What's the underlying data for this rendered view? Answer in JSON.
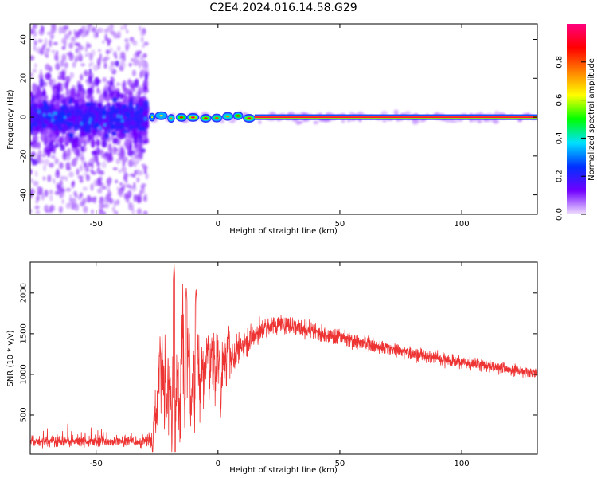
{
  "figure_title": "C2E4.2024.016.14.58.G29",
  "chart_data": [
    {
      "type": "heatmap",
      "title": "C2E4.2024.016.14.58.G29",
      "xlabel": "Height of straight line (km)",
      "ylabel": "Frequency (Hz)",
      "xlim": [
        -77,
        131
      ],
      "ylim": [
        -50,
        48
      ],
      "x_ticks": [
        -50,
        0,
        50,
        100
      ],
      "y_ticks": [
        -40,
        -20,
        0,
        20,
        40
      ],
      "grid": false,
      "regions": [
        {
          "x_range": [
            -77,
            -29
          ],
          "description": "scattered noise, dense band within -10..10 Hz, sparse up to +-48 Hz",
          "amplitude": [
            0.1,
            0.3
          ]
        },
        {
          "x_range": [
            -29,
            15
          ],
          "description": "intermittent signal near 0 Hz",
          "amplitude": [
            0.35,
            0.9
          ]
        },
        {
          "x_range": [
            15,
            131
          ],
          "description": "continuous signal at 0 Hz",
          "amplitude": 1.0
        }
      ],
      "colorbar": {
        "label": "Normalized spectral amplitude",
        "range": [
          0,
          1
        ],
        "ticks": [
          0.0,
          0.2,
          0.4,
          0.6,
          0.8
        ],
        "tick_labels": [
          "0.0",
          "0.2",
          "0.4",
          "0.6",
          "0.8"
        ],
        "colors": [
          "#f0e0ff",
          "#7000ff",
          "#0030ff",
          "#00e0ff",
          "#00ff00",
          "#ffff00",
          "#ff8000",
          "#ff0000",
          "#ff0080"
        ]
      }
    },
    {
      "type": "line",
      "xlabel": "Height of straight line (km)",
      "ylabel": "SNR (10 * v/v)",
      "xlim": [
        -77,
        131
      ],
      "ylim": [
        20,
        2380
      ],
      "x_ticks": [
        -50,
        0,
        50,
        100
      ],
      "y_ticks": [
        500,
        1000,
        1500,
        2000
      ],
      "grid": false,
      "line_color": "#ee3333",
      "envelope": {
        "x": [
          -77,
          -30,
          -27,
          -24,
          -20,
          -15,
          -10,
          -5,
          0,
          5,
          10,
          15,
          20,
          25,
          30,
          40,
          50,
          60,
          70,
          80,
          90,
          100,
          110,
          120,
          131
        ],
        "mean": [
          180,
          180,
          190,
          900,
          1000,
          1050,
          1000,
          1050,
          1100,
          1200,
          1350,
          1480,
          1580,
          1620,
          1600,
          1520,
          1450,
          1380,
          1320,
          1250,
          1200,
          1150,
          1110,
          1060,
          1020
        ],
        "noise": [
          60,
          60,
          80,
          350,
          450,
          400,
          350,
          260,
          230,
          200,
          170,
          130,
          120,
          110,
          100,
          90,
          85,
          80,
          75,
          75,
          70,
          70,
          65,
          65,
          65
        ]
      },
      "peaks": [
        {
          "x": -18,
          "y": 2360
        },
        {
          "x": -13,
          "y": 2080
        },
        {
          "x": -9,
          "y": 2060
        }
      ]
    }
  ]
}
